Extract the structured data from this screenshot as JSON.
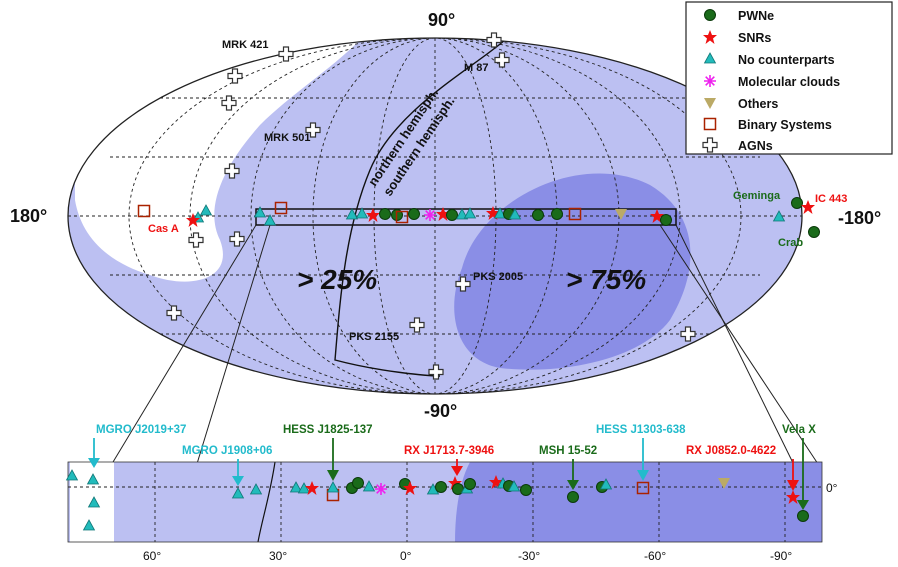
{
  "sky_map": {
    "axis_labels": {
      "top": "90°",
      "bottom": "-90°",
      "left": "180°",
      "right": "-180°"
    },
    "hemisphere": {
      "north": "northern  hemisph.",
      "south": "southern hemisph."
    },
    "fractions": {
      "north": "> 25%",
      "south": "> 75%"
    },
    "agn_labels": [
      "MRK 421",
      "M 87",
      "MRK 501",
      "PKS 2005",
      "PKS 2155"
    ],
    "source_labels": {
      "cas_a": "Cas A",
      "geminga": "Geminga",
      "ic443": "IC 443",
      "crab": "Crab"
    }
  },
  "legend": {
    "items": [
      {
        "label": "PWNe",
        "symbol": "circle",
        "color": "#1a6b1a"
      },
      {
        "label": "SNRs",
        "symbol": "star",
        "color": "#ee1111"
      },
      {
        "label": "No counterparts",
        "symbol": "triangle-up",
        "color": "#22bbbb"
      },
      {
        "label": "Molecular clouds",
        "symbol": "asterisk",
        "color": "#ee22ee"
      },
      {
        "label": "Others",
        "symbol": "triangle-down",
        "color": "#bbaa66"
      },
      {
        "label": "Binary Systems",
        "symbol": "square",
        "color": "#aa2200"
      },
      {
        "label": "AGNs",
        "symbol": "cross",
        "color": "#333333"
      }
    ]
  },
  "plane_strip": {
    "tick_labels": [
      "60°",
      "30°",
      "0°",
      "-30°",
      "-60°",
      "-90°"
    ],
    "lat_label": "0°",
    "callouts": [
      {
        "label": "MGRO J2019+37",
        "color": "#22bbcc"
      },
      {
        "label": "MGRO J1908+06",
        "color": "#22bbcc"
      },
      {
        "label": "HESS J1825-137",
        "color": "#1a6b1a"
      },
      {
        "label": "RX J1713.7-3946",
        "color": "#ee1111"
      },
      {
        "label": "MSH 15-52",
        "color": "#1a6b1a"
      },
      {
        "label": "HESS J1303-638",
        "color": "#22bbcc"
      },
      {
        "label": "RX J0852.0-4622",
        "color": "#ee1111"
      },
      {
        "label": "Vela X",
        "color": "#1a6b1a"
      }
    ]
  }
}
